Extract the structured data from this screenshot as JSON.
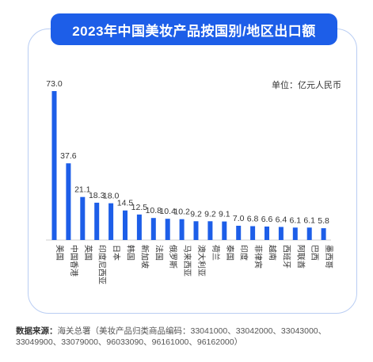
{
  "title": "2023年中国美妆产品按国别/地区出口额",
  "unit_label": "单位：亿元人民币",
  "source": {
    "label": "数据来源：",
    "text": "海关总署（美妆产品归类商品编码：33041000、33042000、33043000、33049900、33079000、96033090、96161000、96162000）"
  },
  "colors": {
    "bar": "#1d5ee8",
    "title_bg": "#1d5ee8",
    "card_border": "#b9cdf3"
  },
  "chart_data": {
    "type": "bar",
    "title": "2023年中国美妆产品按国别/地区出口额",
    "ylabel": "单位：亿元人民币",
    "categories": [
      "美国",
      "中国香港",
      "英国",
      "印度尼西亚",
      "日本",
      "韩国",
      "新加坡",
      "法国",
      "俄罗斯",
      "马来西亚",
      "澳大利亚",
      "荷兰",
      "泰国",
      "印度",
      "菲律宾",
      "越南",
      "西班牙",
      "阿联酋",
      "巴西",
      "墨西哥"
    ],
    "values": [
      73.0,
      37.6,
      21.1,
      18.3,
      18.0,
      14.5,
      12.5,
      10.8,
      10.4,
      10.2,
      9.2,
      9.2,
      9.1,
      7.0,
      6.8,
      6.6,
      6.4,
      6.1,
      6.1,
      5.8
    ],
    "value_labels": [
      "73.0",
      "37.6",
      "21.1",
      "18.3",
      "18.0",
      "14.5",
      "12.5",
      "10.8",
      "10.4",
      "10.2",
      "9.2",
      "9.2",
      "9.1",
      "7.0",
      "6.8",
      "6.6",
      "6.4",
      "6.1",
      "6.1",
      "5.8"
    ],
    "ylim": [
      0,
      73.0
    ],
    "grid": false,
    "legend": "none"
  }
}
